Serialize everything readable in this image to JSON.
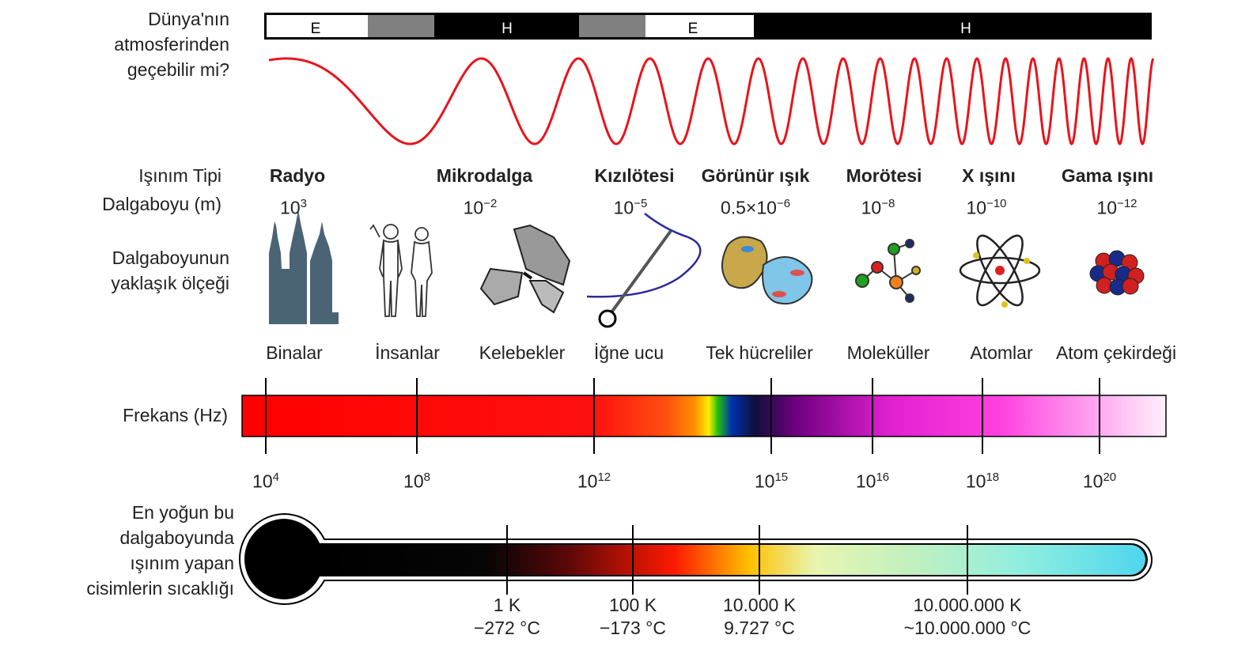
{
  "atmosphere": {
    "question": [
      "Dünya'nın",
      "atmosferinden",
      "geçebilir mi?"
    ],
    "segments": [
      {
        "label": "E",
        "fill": "#ffffff"
      },
      {
        "label": "",
        "fill": "#808080"
      },
      {
        "label": "H",
        "fill": "#000000"
      },
      {
        "label": "",
        "fill": "#808080"
      },
      {
        "label": "E",
        "fill": "#ffffff"
      },
      {
        "label": "H",
        "fill": "#000000"
      }
    ]
  },
  "row_labels": {
    "radiation_type": "Işınım Tipi",
    "wavelength": "Dalgaboyu (m)",
    "scale": [
      "Dalgaboyunun",
      "yaklaşık ölçeği"
    ],
    "frequency": "Frekans (Hz)",
    "temperature": [
      "En yoğun bu",
      "dalgaboyunda",
      "ışınım yapan",
      "cisimlerin sıcaklığı"
    ]
  },
  "radiation_types": [
    {
      "name": "Radyo",
      "wl_base": "10",
      "wl_exp": "3",
      "object": "Binalar",
      "icon": "towers-icon"
    },
    {
      "name": "Mikrodalga",
      "wl_base": "10",
      "wl_exp": "−2",
      "object": "İnsanlar",
      "icon": "humans-icon"
    },
    {
      "name": "Kızılötesi",
      "wl_base": "10",
      "wl_exp": "−5",
      "object": "Kelebekler",
      "icon": "butterfly-icon"
    },
    {
      "name": "Görünür ışık",
      "wl_base": "0.5×10",
      "wl_exp": "−6",
      "object": "İğne ucu",
      "icon": "needle-icon"
    },
    {
      "name": "Morötesi",
      "wl_base": "10",
      "wl_exp": "−8",
      "object": "Tek hücreliler",
      "icon": "cells-icon"
    },
    {
      "name": "X ışını",
      "wl_base": "10",
      "wl_exp": "−10",
      "object": "Moleküller",
      "icon": "molecule-icon"
    },
    {
      "name": "Gama ışını",
      "wl_base": "10",
      "wl_exp": "−12",
      "object": "Atomlar",
      "icon": "atom-icon"
    }
  ],
  "extra_object": {
    "object": "Atom çekirdeği",
    "icon": "nucleus-icon"
  },
  "frequency_ticks": [
    {
      "base": "10",
      "exp": "4"
    },
    {
      "base": "10",
      "exp": "8"
    },
    {
      "base": "10",
      "exp": "12"
    },
    {
      "base": "10",
      "exp": "15"
    },
    {
      "base": "10",
      "exp": "16"
    },
    {
      "base": "10",
      "exp": "18"
    },
    {
      "base": "10",
      "exp": "20"
    }
  ],
  "temperature_ticks": [
    {
      "kelvin": "1 K",
      "celsius": "−272 °C"
    },
    {
      "kelvin": "100 K",
      "celsius": "−173 °C"
    },
    {
      "kelvin": "10.000 K",
      "celsius": "9.727 °C"
    },
    {
      "kelvin": "10.000.000 K",
      "celsius": "~10.000.000 °C"
    }
  ],
  "colors": {
    "wave": "#e8141c",
    "tower": "#4a6475",
    "thermo_end": "#4fd6ee"
  }
}
